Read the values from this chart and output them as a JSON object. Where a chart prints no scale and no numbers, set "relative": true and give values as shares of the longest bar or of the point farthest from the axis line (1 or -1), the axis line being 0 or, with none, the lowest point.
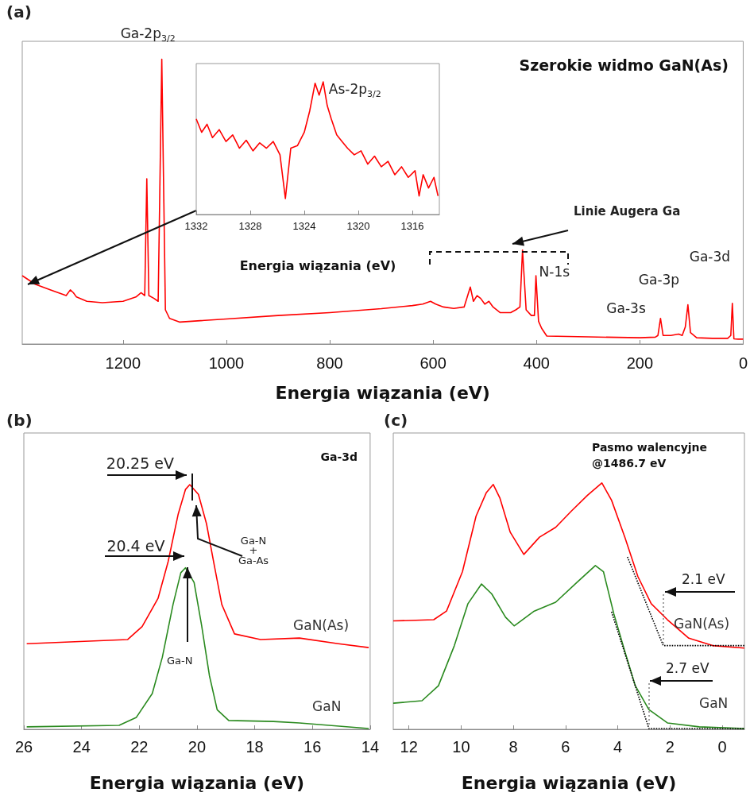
{
  "chart_data": [
    {
      "type": "line",
      "title": "Szerokie widmo GaN(As)",
      "xlabel": "Energia wiązania (eV)",
      "relative": true,
      "xlim": [
        1395,
        0
      ],
      "xticks": [
        1200,
        1000,
        800,
        600,
        400,
        200,
        0
      ],
      "marker": "none",
      "grid": false,
      "legend": false,
      "annotations": [
        "(a)",
        {
          "text": "Ga-2p$_{3/2}$",
          "x": 1125,
          "y": 1.0
        },
        "Linie Augera Ga",
        {
          "text": "N-1s",
          "x": 401,
          "y": 0.24
        },
        {
          "text": "Ga-3s",
          "x": 160,
          "y": 0.09
        },
        {
          "text": "Ga-3p",
          "x": 107,
          "y": 0.138
        },
        {
          "text": "Ga-3d",
          "x": 21,
          "y": 0.143
        }
      ],
      "series": [
        {
          "color": "#ff0000",
          "x": [
            1395,
            1370,
            1340,
            1310,
            1302,
            1296,
            1290,
            1270,
            1240,
            1200,
            1175,
            1165,
            1158,
            1154,
            1150,
            1140,
            1132,
            1125,
            1118,
            1110,
            1090,
            1000,
            900,
            800,
            700,
            640,
            620,
            605,
            595,
            580,
            560,
            540,
            528,
            522,
            515,
            508,
            500,
            492,
            484,
            470,
            450,
            440,
            432,
            427,
            420,
            410,
            404,
            401,
            396,
            390,
            380,
            300,
            200,
            170,
            165,
            160,
            155,
            140,
            125,
            118,
            112,
            107,
            102,
            90,
            60,
            30,
            24,
            21,
            18,
            10,
            0
          ],
          "values": [
            0.24,
            0.21,
            0.19,
            0.17,
            0.19,
            0.18,
            0.165,
            0.15,
            0.145,
            0.15,
            0.165,
            0.18,
            0.17,
            0.58,
            0.17,
            0.16,
            0.15,
            1.0,
            0.12,
            0.09,
            0.077,
            0.088,
            0.1,
            0.11,
            0.124,
            0.135,
            0.14,
            0.15,
            0.14,
            0.13,
            0.125,
            0.13,
            0.2,
            0.15,
            0.17,
            0.16,
            0.14,
            0.15,
            0.13,
            0.11,
            0.11,
            0.12,
            0.13,
            0.33,
            0.12,
            0.1,
            0.1,
            0.24,
            0.08,
            0.055,
            0.028,
            0.025,
            0.022,
            0.024,
            0.03,
            0.09,
            0.03,
            0.03,
            0.035,
            0.03,
            0.06,
            0.138,
            0.04,
            0.022,
            0.02,
            0.02,
            0.03,
            0.143,
            0.018,
            0.017,
            0.017
          ]
        }
      ]
    },
    {
      "type": "line",
      "xlabel": "Energia wiązania (eV)",
      "relative": true,
      "xlim": [
        1332,
        1314
      ],
      "xticks": [
        1332,
        1328,
        1324,
        1320,
        1316
      ],
      "marker": "none",
      "grid": false,
      "legend": false,
      "annotations": [
        {
          "text": "As-2p$_{3/2}$",
          "x": 1322.6,
          "y": 1.0
        }
      ],
      "series": [
        {
          "color": "#ff0000",
          "x": [
            1332,
            1331.6,
            1331.2,
            1330.8,
            1330.3,
            1329.8,
            1329.3,
            1328.8,
            1328.3,
            1327.8,
            1327.3,
            1326.8,
            1326.3,
            1325.8,
            1325.4,
            1325.0,
            1324.5,
            1324.0,
            1323.6,
            1323.2,
            1322.9,
            1322.6,
            1322.3,
            1322.0,
            1321.6,
            1321.2,
            1320.8,
            1320.3,
            1319.8,
            1319.3,
            1318.8,
            1318.3,
            1317.8,
            1317.3,
            1316.8,
            1316.3,
            1315.8,
            1315.5,
            1315.2,
            1314.8,
            1314.4,
            1314.1
          ],
          "values": [
            0.72,
            0.62,
            0.68,
            0.58,
            0.64,
            0.55,
            0.6,
            0.5,
            0.56,
            0.48,
            0.54,
            0.5,
            0.55,
            0.45,
            0.12,
            0.5,
            0.52,
            0.62,
            0.78,
            0.99,
            0.9,
            1.0,
            0.82,
            0.72,
            0.6,
            0.55,
            0.5,
            0.45,
            0.48,
            0.38,
            0.44,
            0.36,
            0.4,
            0.3,
            0.36,
            0.28,
            0.33,
            0.14,
            0.3,
            0.2,
            0.28,
            0.14
          ]
        }
      ]
    },
    {
      "type": "line",
      "title": "Ga-3d",
      "xlabel": "Energia wiązania (eV)",
      "relative": true,
      "xlim": [
        26,
        14
      ],
      "xticks": [
        26,
        24,
        22,
        20,
        18,
        16,
        14
      ],
      "marker": "none",
      "grid": false,
      "legend": false,
      "annotations": [
        "(b)",
        {
          "text": "20.25 eV",
          "x": 20.25,
          "y": 1.0
        },
        {
          "text": "20.4 eV",
          "x": 20.4,
          "y": 0.66
        },
        "Ga-N + Ga-As",
        "Ga-N"
      ],
      "series": [
        {
          "name": "GaN(As)",
          "color": "#ff0000",
          "x": [
            25.9,
            22.4,
            21.9,
            21.35,
            21.0,
            20.65,
            20.4,
            20.25,
            19.95,
            19.67,
            19.4,
            19.14,
            18.7,
            17.8,
            16.45,
            15.1,
            14.05
          ],
          "values": [
            0.35,
            0.367,
            0.42,
            0.535,
            0.685,
            0.88,
            0.98,
            1.0,
            0.96,
            0.84,
            0.67,
            0.51,
            0.39,
            0.367,
            0.373,
            0.35,
            0.334
          ]
        },
        {
          "name": "GaN",
          "color": "#2a8a1f",
          "x": [
            25.9,
            22.7,
            22.1,
            21.55,
            21.2,
            20.83,
            20.56,
            20.4,
            20.1,
            19.84,
            19.57,
            19.3,
            18.9,
            17.35,
            16.45,
            14.05
          ],
          "values": [
            0.01,
            0.016,
            0.049,
            0.146,
            0.295,
            0.51,
            0.64,
            0.66,
            0.6,
            0.425,
            0.22,
            0.08,
            0.036,
            0.032,
            0.026,
            0.003
          ]
        }
      ]
    },
    {
      "type": "line",
      "title": "Pasmo walencyjne @1486.7 eV",
      "xlabel": "Energia wiązania (eV)",
      "relative": true,
      "xlim": [
        12.6,
        -0.85
      ],
      "xticks": [
        12,
        10,
        8,
        6,
        4,
        2,
        0
      ],
      "marker": "none",
      "grid": false,
      "legend": false,
      "annotations": [
        "(c)",
        "2.1 eV",
        "2.7 eV"
      ],
      "series": [
        {
          "name": "GaN(As)",
          "color": "#ff0000",
          "x": [
            12.6,
            11.05,
            10.56,
            9.95,
            9.43,
            9.04,
            8.77,
            8.52,
            8.12,
            7.6,
            7.0,
            6.38,
            5.77,
            5.16,
            4.61,
            4.24,
            3.73,
            3.23,
            2.72,
            2.1,
            1.28,
            0.37,
            -0.85
          ],
          "values": [
            0.44,
            0.445,
            0.48,
            0.64,
            0.865,
            0.96,
            0.994,
            0.94,
            0.8,
            0.71,
            0.78,
            0.82,
            0.887,
            0.95,
            1.0,
            0.93,
            0.78,
            0.62,
            0.51,
            0.445,
            0.37,
            0.34,
            0.33
          ]
        },
        {
          "name": "GaN",
          "color": "#2a8a1f",
          "x": [
            12.6,
            11.5,
            10.87,
            10.26,
            9.74,
            9.22,
            8.83,
            8.3,
            7.97,
            7.2,
            6.38,
            5.56,
            4.86,
            4.55,
            4.15,
            3.73,
            3.33,
            2.81,
            2.1,
            0.88,
            -0.85
          ],
          "values": [
            0.106,
            0.116,
            0.177,
            0.34,
            0.51,
            0.59,
            0.55,
            0.455,
            0.42,
            0.48,
            0.516,
            0.597,
            0.665,
            0.64,
            0.468,
            0.316,
            0.177,
            0.08,
            0.026,
            0.01,
            0.003
          ]
        },
        {
          "type": "line",
          "color": "#000000",
          "line_style": "dotted",
          "x": [
            3.63,
            2.26,
            -0.85
          ],
          "values": [
            0.7,
            0.34,
            0.34
          ]
        },
        {
          "type": "line",
          "color": "#000000",
          "line_style": "dotted",
          "x": [
            4.24,
            2.81,
            -0.85
          ],
          "values": [
            0.477,
            0.003,
            0.003
          ]
        }
      ]
    }
  ]
}
